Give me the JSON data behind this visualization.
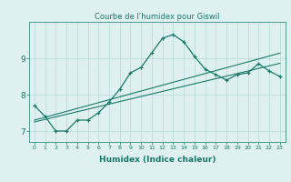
{
  "title": "Courbe de l’humidex pour Giswil",
  "xlabel": "Humidex (Indice chaleur)",
  "background_color": "#dff0f0",
  "grid_color": "#b8d8d8",
  "line_color": "#1a7a6a",
  "x_data": [
    0,
    1,
    2,
    3,
    4,
    5,
    6,
    7,
    8,
    9,
    10,
    11,
    12,
    13,
    14,
    15,
    16,
    17,
    18,
    19,
    20,
    21,
    22,
    23
  ],
  "y_main": [
    7.7,
    7.4,
    7.0,
    7.0,
    7.3,
    7.3,
    7.5,
    7.8,
    8.15,
    8.6,
    8.75,
    9.15,
    9.55,
    9.65,
    9.45,
    9.05,
    8.7,
    8.55,
    8.4,
    8.55,
    8.6,
    8.85,
    8.65,
    8.5
  ],
  "y_linear1": [
    7.3,
    7.38,
    7.46,
    7.54,
    7.62,
    7.7,
    7.78,
    7.86,
    7.94,
    8.02,
    8.1,
    8.18,
    8.26,
    8.34,
    8.42,
    8.5,
    8.58,
    8.66,
    8.74,
    8.82,
    8.9,
    8.98,
    9.06,
    9.14
  ],
  "y_linear2": [
    7.25,
    7.32,
    7.39,
    7.46,
    7.53,
    7.6,
    7.67,
    7.74,
    7.81,
    7.88,
    7.95,
    8.02,
    8.09,
    8.16,
    8.23,
    8.3,
    8.37,
    8.44,
    8.51,
    8.58,
    8.65,
    8.72,
    8.79,
    8.86
  ],
  "ylim": [
    6.7,
    10.0
  ],
  "yticks": [
    7,
    8,
    9
  ],
  "xlim": [
    -0.5,
    23.5
  ],
  "xticks": [
    0,
    1,
    2,
    3,
    4,
    5,
    6,
    7,
    8,
    9,
    10,
    11,
    12,
    13,
    14,
    15,
    16,
    17,
    18,
    19,
    20,
    21,
    22,
    23
  ]
}
